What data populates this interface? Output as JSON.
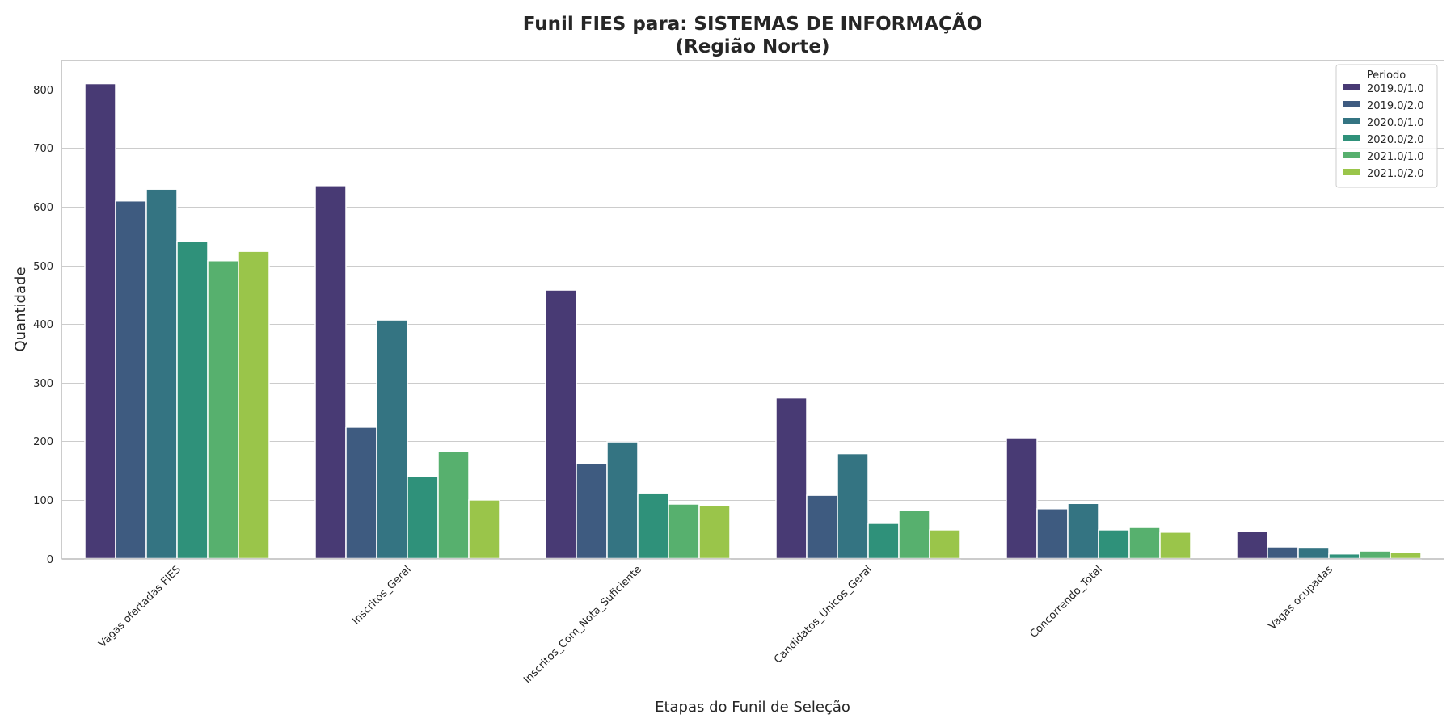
{
  "chart_data": {
    "type": "bar",
    "title_line1": "Funil FIES para: SISTEMAS DE INFORMAÇÃO",
    "title_line2": "(Região Norte)",
    "xlabel": "Etapas do Funil de Seleção",
    "ylabel": "Quantidade",
    "ylim": [
      0,
      850
    ],
    "yticks": [
      0,
      100,
      200,
      300,
      400,
      500,
      600,
      700,
      800
    ],
    "grid": "horizontal",
    "legend_title": "Periodo",
    "legend_position": "top-right",
    "categories": [
      "Vagas ofertadas FIES",
      "Inscritos_Geral",
      "Inscritos_Com_Nota_Suficiente",
      "Candidatos_Unicos_Geral",
      "Concorrendo_Total",
      "Vagas ocupadas"
    ],
    "series": [
      {
        "name": "2019.0/1.0",
        "color": "#483a74",
        "values": [
          810,
          636,
          458,
          274,
          206,
          46
        ]
      },
      {
        "name": "2019.0/2.0",
        "color": "#3e5b80",
        "values": [
          610,
          224,
          162,
          108,
          85,
          20
        ]
      },
      {
        "name": "2020.0/1.0",
        "color": "#347482",
        "values": [
          630,
          407,
          199,
          179,
          94,
          18
        ]
      },
      {
        "name": "2020.0/2.0",
        "color": "#2f917a",
        "values": [
          541,
          140,
          112,
          60,
          49,
          8
        ]
      },
      {
        "name": "2021.0/1.0",
        "color": "#57b06e",
        "values": [
          508,
          183,
          93,
          82,
          53,
          13
        ]
      },
      {
        "name": "2021.0/2.0",
        "color": "#9ac54a",
        "values": [
          524,
          100,
          91,
          49,
          45,
          10
        ]
      }
    ]
  }
}
